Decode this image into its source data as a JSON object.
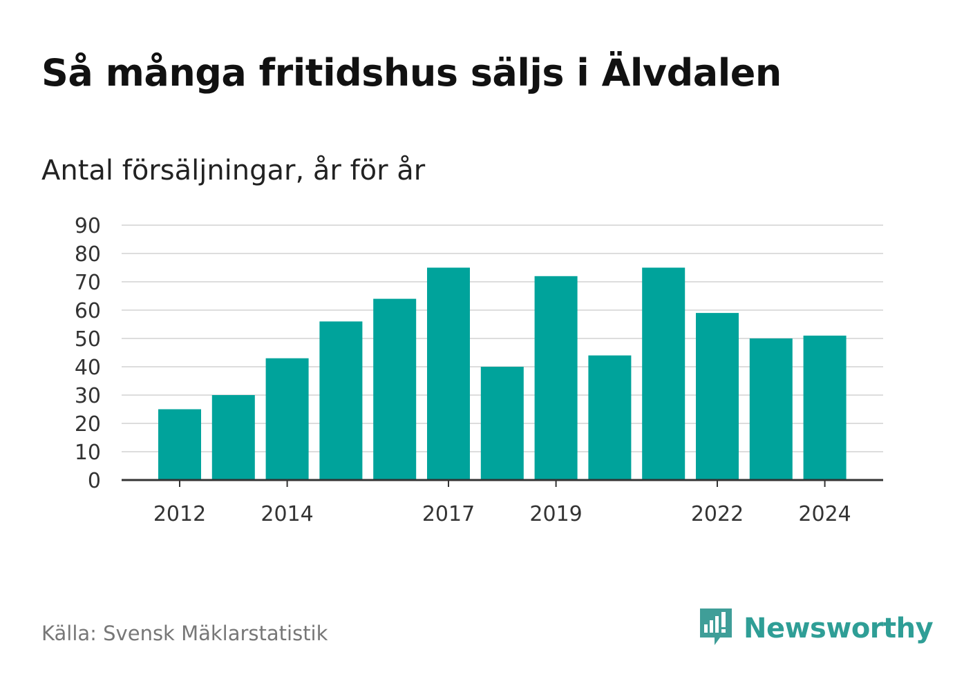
{
  "title": "Så många fritidshus säljs i Älvdalen",
  "subtitle": "Antal försäljningar, år för år",
  "source": "Källa: Svensk Mäklarstatistik",
  "brand": {
    "name": "Newsworthy",
    "icon": "newsworthy-logo-icon"
  },
  "colors": {
    "bar": "#00a39b",
    "grid": "#dddddd",
    "axis": "#333333",
    "brand": "#2f9e96"
  },
  "chart_data": {
    "type": "bar",
    "categories": [
      "2012",
      "2013",
      "2014",
      "2015",
      "2016",
      "2017",
      "2018",
      "2019",
      "2020",
      "2021",
      "2022",
      "2023",
      "2024"
    ],
    "values": [
      25,
      30,
      43,
      56,
      64,
      75,
      40,
      72,
      44,
      75,
      59,
      50,
      51
    ],
    "xtick_labels": [
      "2012",
      "2014",
      "2017",
      "2019",
      "2022",
      "2024"
    ],
    "yticks": [
      0,
      10,
      20,
      30,
      40,
      50,
      60,
      70,
      80,
      90
    ],
    "ylim": [
      0,
      90
    ],
    "grid": true,
    "xlabel": "",
    "ylabel": ""
  }
}
